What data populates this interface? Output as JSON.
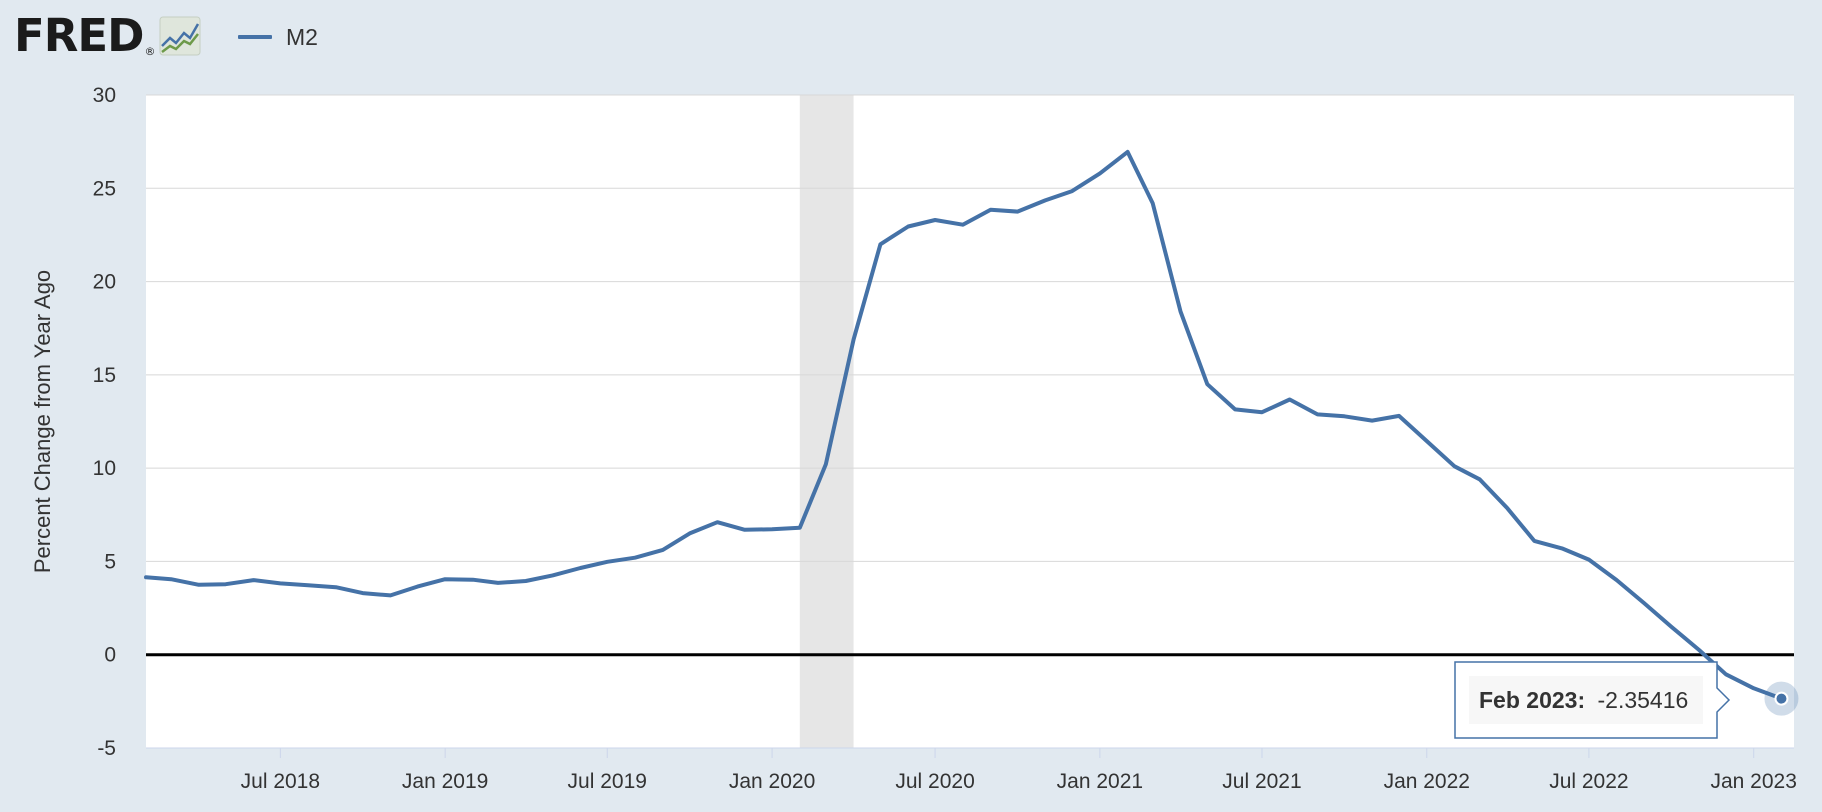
{
  "header": {
    "logo_text": "FRED",
    "logo_reg": "®",
    "logo_icon": "line-chart-icon"
  },
  "colors": {
    "background": "#e1e9f0",
    "plot_background": "#ffffff",
    "series": "#4572a7",
    "recession": "#e6e6e6",
    "zero_line": "#000000",
    "grid": "#d8d8d8"
  },
  "chart_data": {
    "type": "line",
    "title": "",
    "xlabel": "",
    "ylabel": "Percent Change from Year Ago",
    "ylim": [
      -5,
      30
    ],
    "yticks": [
      -5,
      0,
      5,
      10,
      15,
      20,
      25,
      30
    ],
    "xlim": [
      "2018-02-01",
      "2023-02-15"
    ],
    "xticks": [
      {
        "date": "2018-07-01",
        "label": "Jul 2018"
      },
      {
        "date": "2019-01-01",
        "label": "Jan 2019"
      },
      {
        "date": "2019-07-01",
        "label": "Jul 2019"
      },
      {
        "date": "2020-01-01",
        "label": "Jan 2020"
      },
      {
        "date": "2020-07-01",
        "label": "Jul 2020"
      },
      {
        "date": "2021-01-01",
        "label": "Jan 2021"
      },
      {
        "date": "2021-07-01",
        "label": "Jul 2021"
      },
      {
        "date": "2022-01-01",
        "label": "Jan 2022"
      },
      {
        "date": "2022-07-01",
        "label": "Jul 2022"
      },
      {
        "date": "2023-01-01",
        "label": "Jan 2023"
      }
    ],
    "grid": "horizontal",
    "legend": "top-left",
    "recessions": [
      {
        "start": "2020-02-01",
        "end": "2020-04-01"
      }
    ],
    "series": [
      {
        "name": "M2",
        "x": [
          "2018-02",
          "2018-03",
          "2018-04",
          "2018-05",
          "2018-06",
          "2018-07",
          "2018-08",
          "2018-09",
          "2018-10",
          "2018-11",
          "2018-12",
          "2019-01",
          "2019-02",
          "2019-03",
          "2019-04",
          "2019-05",
          "2019-06",
          "2019-07",
          "2019-08",
          "2019-09",
          "2019-10",
          "2019-11",
          "2019-12",
          "2020-01",
          "2020-02",
          "2020-03",
          "2020-04",
          "2020-05",
          "2020-06",
          "2020-07",
          "2020-08",
          "2020-09",
          "2020-10",
          "2020-11",
          "2020-12",
          "2021-01",
          "2021-02",
          "2021-03",
          "2021-04",
          "2021-05",
          "2021-06",
          "2021-07",
          "2021-08",
          "2021-09",
          "2021-10",
          "2021-11",
          "2021-12",
          "2022-01",
          "2022-02",
          "2022-03",
          "2022-04",
          "2022-05",
          "2022-06",
          "2022-07",
          "2022-08",
          "2022-09",
          "2022-10",
          "2022-11",
          "2022-12",
          "2023-01",
          "2023-02"
        ],
        "values": [
          4.15,
          4.05,
          3.75,
          3.78,
          4.0,
          3.82,
          3.72,
          3.62,
          3.3,
          3.18,
          3.65,
          4.05,
          4.02,
          3.85,
          3.95,
          4.25,
          4.65,
          4.98,
          5.2,
          5.62,
          6.5,
          7.1,
          6.7,
          6.72,
          6.8,
          10.2,
          16.9,
          22.0,
          22.95,
          23.3,
          23.05,
          23.85,
          23.75,
          24.35,
          24.85,
          25.8,
          26.95,
          24.2,
          18.4,
          14.5,
          13.15,
          13.0,
          13.68,
          12.88,
          12.78,
          12.55,
          12.8,
          11.45,
          10.1,
          9.4,
          7.85,
          6.1,
          5.7,
          5.1,
          4.0,
          2.75,
          1.5,
          0.25,
          -1.05,
          -1.8,
          -2.35416
        ]
      }
    ],
    "tooltip": {
      "date_label": "Feb 2023:",
      "value_label": "-2.35416"
    }
  }
}
